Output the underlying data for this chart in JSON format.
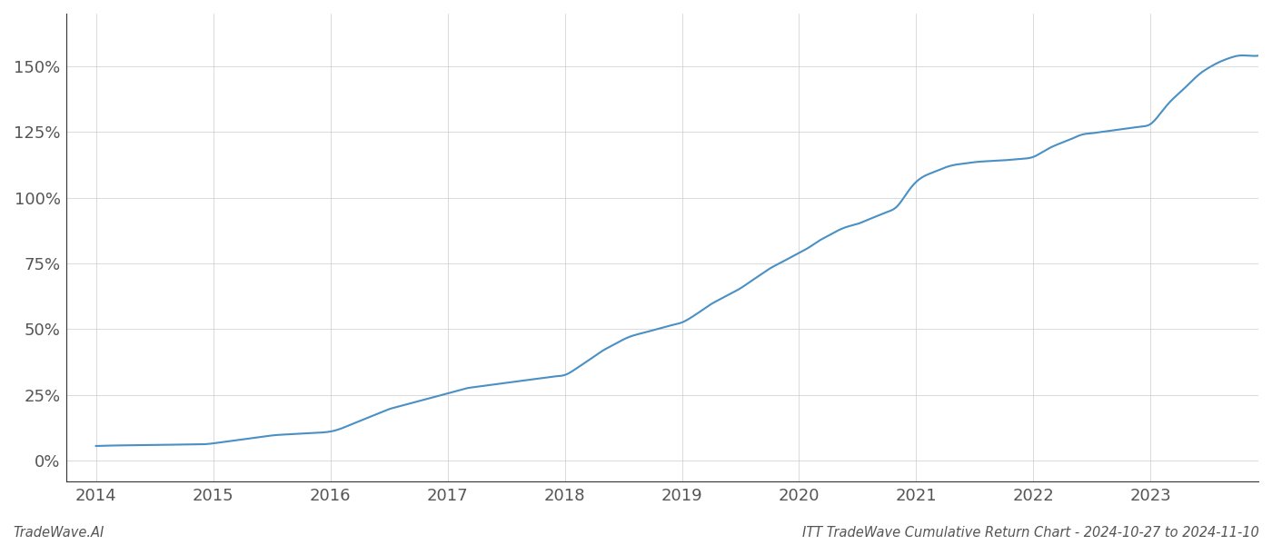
{
  "x_years": [
    2014.0,
    2014.083,
    2014.167,
    2014.25,
    2014.333,
    2014.417,
    2014.5,
    2014.583,
    2014.667,
    2014.75,
    2014.833,
    2014.917,
    2015.0,
    2015.083,
    2015.167,
    2015.25,
    2015.333,
    2015.417,
    2015.5,
    2015.583,
    2015.667,
    2015.75,
    2015.833,
    2015.917,
    2016.0,
    2016.083,
    2016.167,
    2016.25,
    2016.333,
    2016.417,
    2016.5,
    2016.583,
    2016.667,
    2016.75,
    2016.833,
    2016.917,
    2017.0,
    2017.083,
    2017.167,
    2017.25,
    2017.333,
    2017.417,
    2017.5,
    2017.583,
    2017.667,
    2017.75,
    2017.833,
    2017.917,
    2018.0,
    2018.083,
    2018.167,
    2018.25,
    2018.333,
    2018.417,
    2018.5,
    2018.583,
    2018.667,
    2018.75,
    2018.833,
    2018.917,
    2019.0,
    2019.083,
    2019.167,
    2019.25,
    2019.333,
    2019.417,
    2019.5,
    2019.583,
    2019.667,
    2019.75,
    2019.833,
    2019.917,
    2020.0,
    2020.083,
    2020.167,
    2020.25,
    2020.333,
    2020.417,
    2020.5,
    2020.583,
    2020.667,
    2020.75,
    2020.833,
    2020.917,
    2021.0,
    2021.083,
    2021.167,
    2021.25,
    2021.333,
    2021.417,
    2021.5,
    2021.583,
    2021.667,
    2021.75,
    2021.833,
    2021.917,
    2022.0,
    2022.083,
    2022.167,
    2022.25,
    2022.333,
    2022.417,
    2022.5,
    2022.583,
    2022.667,
    2022.75,
    2022.833,
    2022.917,
    2023.0,
    2023.083,
    2023.167,
    2023.25,
    2023.333,
    2023.417,
    2023.5,
    2023.583,
    2023.667,
    2023.75,
    2023.833,
    2023.917
  ],
  "y_values": [
    5.5,
    5.6,
    5.7,
    5.75,
    5.8,
    5.85,
    5.9,
    5.95,
    6.0,
    6.05,
    6.1,
    6.15,
    6.5,
    7.0,
    7.5,
    8.0,
    8.5,
    9.0,
    9.5,
    9.8,
    10.0,
    10.2,
    10.4,
    10.6,
    11.0,
    12.0,
    13.5,
    15.0,
    16.5,
    18.0,
    19.5,
    20.5,
    21.5,
    22.5,
    23.5,
    24.5,
    25.5,
    26.5,
    27.5,
    28.0,
    28.5,
    29.0,
    29.5,
    30.0,
    30.5,
    31.0,
    31.5,
    32.0,
    32.5,
    34.5,
    37.0,
    39.5,
    42.0,
    44.0,
    46.0,
    47.5,
    48.5,
    49.5,
    50.5,
    51.5,
    52.5,
    54.5,
    57.0,
    59.5,
    61.5,
    63.5,
    65.5,
    68.0,
    70.5,
    73.0,
    75.0,
    77.0,
    79.0,
    81.0,
    83.5,
    85.5,
    87.5,
    89.0,
    90.0,
    91.5,
    93.0,
    94.5,
    96.5,
    101.5,
    106.0,
    108.5,
    110.0,
    111.5,
    112.5,
    113.0,
    113.5,
    113.8,
    114.0,
    114.2,
    114.5,
    114.8,
    115.5,
    117.5,
    119.5,
    121.0,
    122.5,
    124.0,
    124.5,
    125.0,
    125.5,
    126.0,
    126.5,
    127.0,
    128.0,
    132.0,
    136.5,
    140.0,
    143.5,
    147.0,
    149.5,
    151.5,
    153.0,
    154.0,
    154.0,
    154.0
  ],
  "line_color": "#4a90c4",
  "line_width": 1.5,
  "background_color": "#ffffff",
  "grid_color": "#cccccc",
  "grid_linestyle": "-",
  "grid_linewidth": 0.5,
  "x_ticks": [
    2014,
    2015,
    2016,
    2017,
    2018,
    2019,
    2020,
    2021,
    2022,
    2023
  ],
  "y_ticks": [
    0,
    25,
    50,
    75,
    100,
    125,
    150
  ],
  "y_tick_labels": [
    "0%",
    "25%",
    "50%",
    "75%",
    "100%",
    "125%",
    "150%"
  ],
  "xlim": [
    2013.75,
    2023.92
  ],
  "ylim": [
    -8,
    170
  ],
  "title": "ITT TradeWave Cumulative Return Chart - 2024-10-27 to 2024-11-10",
  "title_fontsize": 10.5,
  "title_color": "#555555",
  "watermark_text": "TradeWave.AI",
  "watermark_fontsize": 10.5,
  "watermark_color": "#555555",
  "tick_fontsize": 13,
  "tick_color": "#555555",
  "left_spine_color": "#333333",
  "bottom_spine_color": "#333333",
  "figsize": [
    14,
    6
  ],
  "dpi": 100
}
